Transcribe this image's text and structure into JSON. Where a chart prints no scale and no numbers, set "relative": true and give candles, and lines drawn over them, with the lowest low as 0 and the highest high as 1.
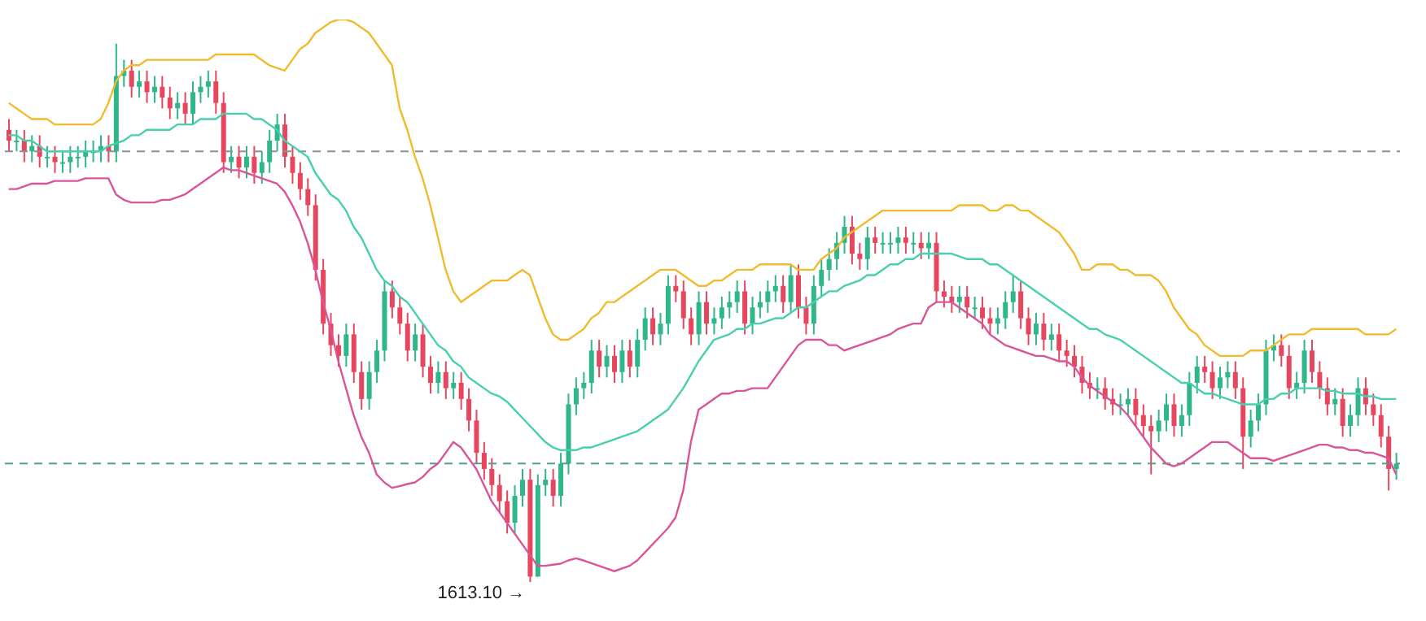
{
  "chart_data": {
    "type": "candlestick",
    "relative": true,
    "categories": [
      null,
      null,
      null,
      null,
      null,
      null,
      null,
      null,
      null,
      null,
      null,
      null,
      null,
      null,
      null,
      null,
      null,
      null,
      null,
      null,
      null,
      null,
      null,
      null,
      null,
      null,
      null,
      null,
      null,
      null,
      null,
      null,
      null,
      null,
      null,
      null,
      null,
      null,
      null,
      null,
      null,
      null,
      null,
      null,
      null,
      null,
      null,
      null,
      null,
      null,
      null,
      null,
      null,
      null,
      null,
      null,
      null,
      null,
      null,
      null,
      null,
      null,
      null,
      null,
      null,
      null,
      null,
      null,
      null,
      null,
      null,
      null,
      null,
      null,
      null,
      null,
      null,
      null,
      null,
      null,
      null,
      null,
      null,
      null,
      null,
      null,
      null,
      null,
      null,
      null,
      null,
      null,
      null,
      null,
      null,
      null,
      null,
      null,
      null,
      null,
      null,
      null,
      null,
      null,
      null,
      null,
      null,
      null,
      null,
      null,
      null,
      null,
      null,
      null,
      null,
      null,
      null,
      null,
      null,
      null,
      null,
      null,
      null,
      null,
      null,
      null,
      null,
      null,
      null,
      null,
      null,
      null,
      null,
      null,
      null,
      null,
      null,
      null,
      null,
      null,
      null,
      null,
      null,
      null,
      null,
      null,
      null,
      null,
      null,
      null,
      null,
      null,
      null,
      null,
      null,
      null,
      null,
      null,
      null,
      null,
      null,
      null,
      null,
      null,
      null,
      null,
      null,
      null,
      null,
      null,
      null,
      null,
      null,
      null,
      null,
      null,
      null,
      null,
      null,
      null,
      null,
      null
    ],
    "ohlc": [
      [
        0.84,
        0.86,
        0.8,
        0.82
      ],
      [
        0.82,
        0.84,
        0.8,
        0.82
      ],
      [
        0.82,
        0.84,
        0.78,
        0.8
      ],
      [
        0.8,
        0.83,
        0.78,
        0.81
      ],
      [
        0.81,
        0.83,
        0.77,
        0.79
      ],
      [
        0.79,
        0.81,
        0.77,
        0.79
      ],
      [
        0.79,
        0.81,
        0.76,
        0.78
      ],
      [
        0.78,
        0.8,
        0.76,
        0.78
      ],
      [
        0.78,
        0.81,
        0.76,
        0.79
      ],
      [
        0.79,
        0.81,
        0.77,
        0.79
      ],
      [
        0.79,
        0.82,
        0.77,
        0.8
      ],
      [
        0.8,
        0.82,
        0.78,
        0.8
      ],
      [
        0.8,
        0.83,
        0.78,
        0.81
      ],
      [
        0.81,
        0.83,
        0.78,
        0.8
      ],
      [
        0.8,
        1.0,
        0.78,
        0.94
      ],
      [
        0.94,
        0.97,
        0.92,
        0.95
      ],
      [
        0.95,
        0.97,
        0.9,
        0.92
      ],
      [
        0.92,
        0.95,
        0.9,
        0.93
      ],
      [
        0.93,
        0.95,
        0.89,
        0.91
      ],
      [
        0.91,
        0.94,
        0.89,
        0.92
      ],
      [
        0.92,
        0.94,
        0.88,
        0.9
      ],
      [
        0.9,
        0.92,
        0.86,
        0.88
      ],
      [
        0.88,
        0.91,
        0.86,
        0.89
      ],
      [
        0.89,
        0.91,
        0.85,
        0.87
      ],
      [
        0.87,
        0.93,
        0.85,
        0.91
      ],
      [
        0.91,
        0.94,
        0.89,
        0.92
      ],
      [
        0.92,
        0.95,
        0.9,
        0.93
      ],
      [
        0.93,
        0.95,
        0.87,
        0.89
      ],
      [
        0.89,
        0.91,
        0.76,
        0.78
      ],
      [
        0.78,
        0.81,
        0.76,
        0.79
      ],
      [
        0.79,
        0.81,
        0.75,
        0.77
      ],
      [
        0.77,
        0.81,
        0.75,
        0.79
      ],
      [
        0.79,
        0.81,
        0.74,
        0.76
      ],
      [
        0.76,
        0.8,
        0.74,
        0.78
      ],
      [
        0.78,
        0.84,
        0.76,
        0.82
      ],
      [
        0.82,
        0.87,
        0.8,
        0.85
      ],
      [
        0.85,
        0.87,
        0.77,
        0.79
      ],
      [
        0.79,
        0.81,
        0.74,
        0.76
      ],
      [
        0.76,
        0.78,
        0.71,
        0.73
      ],
      [
        0.73,
        0.75,
        0.68,
        0.7
      ],
      [
        0.7,
        0.72,
        0.56,
        0.58
      ],
      [
        0.58,
        0.6,
        0.46,
        0.48
      ],
      [
        0.48,
        0.5,
        0.42,
        0.44
      ],
      [
        0.44,
        0.46,
        0.4,
        0.42
      ],
      [
        0.42,
        0.48,
        0.4,
        0.46
      ],
      [
        0.46,
        0.48,
        0.37,
        0.39
      ],
      [
        0.39,
        0.41,
        0.32,
        0.34
      ],
      [
        0.34,
        0.41,
        0.32,
        0.39
      ],
      [
        0.39,
        0.45,
        0.37,
        0.43
      ],
      [
        0.43,
        0.56,
        0.41,
        0.54
      ],
      [
        0.54,
        0.56,
        0.49,
        0.51
      ],
      [
        0.51,
        0.53,
        0.46,
        0.48
      ],
      [
        0.48,
        0.5,
        0.41,
        0.43
      ],
      [
        0.43,
        0.48,
        0.41,
        0.46
      ],
      [
        0.46,
        0.48,
        0.38,
        0.4
      ],
      [
        0.4,
        0.42,
        0.35,
        0.37
      ],
      [
        0.37,
        0.41,
        0.35,
        0.39
      ],
      [
        0.39,
        0.41,
        0.34,
        0.36
      ],
      [
        0.36,
        0.39,
        0.34,
        0.37
      ],
      [
        0.37,
        0.39,
        0.32,
        0.34
      ],
      [
        0.34,
        0.36,
        0.28,
        0.3
      ],
      [
        0.3,
        0.32,
        0.22,
        0.24
      ],
      [
        0.24,
        0.26,
        0.19,
        0.21
      ],
      [
        0.21,
        0.23,
        0.16,
        0.18
      ],
      [
        0.18,
        0.2,
        0.13,
        0.15
      ],
      [
        0.15,
        0.17,
        0.09,
        0.11
      ],
      [
        0.11,
        0.18,
        0.09,
        0.16
      ],
      [
        0.16,
        0.21,
        0.14,
        0.19
      ],
      [
        0.19,
        0.21,
        0,
        0.01
      ],
      [
        0.01,
        0.2,
        0.01,
        0.18
      ],
      [
        0.18,
        0.21,
        0.16,
        0.19
      ],
      [
        0.19,
        0.21,
        0.14,
        0.16
      ],
      [
        0.16,
        0.24,
        0.14,
        0.22
      ],
      [
        0.22,
        0.35,
        0.2,
        0.33
      ],
      [
        0.33,
        0.38,
        0.31,
        0.36
      ],
      [
        0.36,
        0.39,
        0.34,
        0.37
      ],
      [
        0.37,
        0.45,
        0.35,
        0.43
      ],
      [
        0.43,
        0.45,
        0.38,
        0.4
      ],
      [
        0.4,
        0.44,
        0.38,
        0.42
      ],
      [
        0.42,
        0.44,
        0.37,
        0.39
      ],
      [
        0.39,
        0.45,
        0.37,
        0.43
      ],
      [
        0.43,
        0.45,
        0.38,
        0.4
      ],
      [
        0.4,
        0.47,
        0.38,
        0.45
      ],
      [
        0.45,
        0.51,
        0.43,
        0.49
      ],
      [
        0.49,
        0.51,
        0.44,
        0.46
      ],
      [
        0.46,
        0.5,
        0.44,
        0.48
      ],
      [
        0.48,
        0.57,
        0.46,
        0.55
      ],
      [
        0.55,
        0.57,
        0.52,
        0.54
      ],
      [
        0.54,
        0.56,
        0.47,
        0.49
      ],
      [
        0.49,
        0.51,
        0.44,
        0.46
      ],
      [
        0.46,
        0.54,
        0.44,
        0.52
      ],
      [
        0.52,
        0.54,
        0.46,
        0.48
      ],
      [
        0.48,
        0.51,
        0.46,
        0.49
      ],
      [
        0.49,
        0.53,
        0.47,
        0.51
      ],
      [
        0.51,
        0.54,
        0.49,
        0.52
      ],
      [
        0.52,
        0.56,
        0.5,
        0.54
      ],
      [
        0.54,
        0.56,
        0.46,
        0.48
      ],
      [
        0.48,
        0.53,
        0.46,
        0.51
      ],
      [
        0.51,
        0.54,
        0.49,
        0.52
      ],
      [
        0.52,
        0.56,
        0.5,
        0.54
      ],
      [
        0.54,
        0.57,
        0.52,
        0.55
      ],
      [
        0.55,
        0.57,
        0.5,
        0.52
      ],
      [
        0.52,
        0.59,
        0.5,
        0.57
      ],
      [
        0.57,
        0.59,
        0.49,
        0.51
      ],
      [
        0.51,
        0.53,
        0.46,
        0.48
      ],
      [
        0.48,
        0.57,
        0.46,
        0.55
      ],
      [
        0.55,
        0.6,
        0.53,
        0.58
      ],
      [
        0.58,
        0.62,
        0.56,
        0.6
      ],
      [
        0.6,
        0.65,
        0.58,
        0.63
      ],
      [
        0.63,
        0.68,
        0.61,
        0.66
      ],
      [
        0.66,
        0.68,
        0.59,
        0.61
      ],
      [
        0.61,
        0.63,
        0.58,
        0.6
      ],
      [
        0.6,
        0.66,
        0.58,
        0.64
      ],
      [
        0.64,
        0.66,
        0.61,
        0.63
      ],
      [
        0.63,
        0.65,
        0.61,
        0.63
      ],
      [
        0.63,
        0.65,
        0.61,
        0.63
      ],
      [
        0.63,
        0.66,
        0.61,
        0.64
      ],
      [
        0.64,
        0.66,
        0.61,
        0.63
      ],
      [
        0.63,
        0.65,
        0.61,
        0.63
      ],
      [
        0.63,
        0.65,
        0.6,
        0.62
      ],
      [
        0.62,
        0.65,
        0.6,
        0.63
      ],
      [
        0.63,
        0.65,
        0.52,
        0.54
      ],
      [
        0.54,
        0.56,
        0.51,
        0.53
      ],
      [
        0.53,
        0.55,
        0.5,
        0.52
      ],
      [
        0.52,
        0.55,
        0.5,
        0.53
      ],
      [
        0.53,
        0.55,
        0.49,
        0.51
      ],
      [
        0.51,
        0.53,
        0.49,
        0.51
      ],
      [
        0.51,
        0.53,
        0.47,
        0.49
      ],
      [
        0.49,
        0.51,
        0.46,
        0.48
      ],
      [
        0.48,
        0.51,
        0.46,
        0.49
      ],
      [
        0.49,
        0.54,
        0.47,
        0.52
      ],
      [
        0.52,
        0.57,
        0.5,
        0.54
      ],
      [
        0.54,
        0.56,
        0.47,
        0.49
      ],
      [
        0.49,
        0.51,
        0.44,
        0.46
      ],
      [
        0.46,
        0.5,
        0.44,
        0.48
      ],
      [
        0.48,
        0.5,
        0.43,
        0.45
      ],
      [
        0.45,
        0.48,
        0.43,
        0.46
      ],
      [
        0.46,
        0.48,
        0.41,
        0.43
      ],
      [
        0.43,
        0.45,
        0.4,
        0.42
      ],
      [
        0.42,
        0.44,
        0.38,
        0.4
      ],
      [
        0.4,
        0.42,
        0.35,
        0.37
      ],
      [
        0.37,
        0.39,
        0.34,
        0.36
      ],
      [
        0.36,
        0.38,
        0.34,
        0.36
      ],
      [
        0.36,
        0.38,
        0.32,
        0.34
      ],
      [
        0.34,
        0.36,
        0.31,
        0.33
      ],
      [
        0.33,
        0.35,
        0.31,
        0.33
      ],
      [
        0.33,
        0.36,
        0.31,
        0.34
      ],
      [
        0.34,
        0.36,
        0.29,
        0.31
      ],
      [
        0.31,
        0.33,
        0.27,
        0.29
      ],
      [
        0.29,
        0.31,
        0.2,
        0.28
      ],
      [
        0.28,
        0.32,
        0.26,
        0.3
      ],
      [
        0.3,
        0.35,
        0.28,
        0.33
      ],
      [
        0.33,
        0.35,
        0.27,
        0.29
      ],
      [
        0.29,
        0.33,
        0.27,
        0.31
      ],
      [
        0.31,
        0.39,
        0.29,
        0.37
      ],
      [
        0.37,
        0.42,
        0.35,
        0.4
      ],
      [
        0.4,
        0.42,
        0.37,
        0.39
      ],
      [
        0.39,
        0.41,
        0.34,
        0.36
      ],
      [
        0.36,
        0.4,
        0.34,
        0.38
      ],
      [
        0.38,
        0.41,
        0.36,
        0.39
      ],
      [
        0.39,
        0.41,
        0.34,
        0.36
      ],
      [
        0.36,
        0.38,
        0.21,
        0.27
      ],
      [
        0.27,
        0.32,
        0.25,
        0.3
      ],
      [
        0.3,
        0.35,
        0.28,
        0.33
      ],
      [
        0.33,
        0.45,
        0.31,
        0.43
      ],
      [
        0.43,
        0.46,
        0.41,
        0.44
      ],
      [
        0.44,
        0.46,
        0.4,
        0.42
      ],
      [
        0.42,
        0.44,
        0.34,
        0.36
      ],
      [
        0.36,
        0.39,
        0.34,
        0.37
      ],
      [
        0.37,
        0.45,
        0.35,
        0.43
      ],
      [
        0.43,
        0.45,
        0.37,
        0.39
      ],
      [
        0.39,
        0.41,
        0.34,
        0.36
      ],
      [
        0.36,
        0.38,
        0.31,
        0.33
      ],
      [
        0.33,
        0.36,
        0.31,
        0.34
      ],
      [
        0.34,
        0.36,
        0.27,
        0.29
      ],
      [
        0.29,
        0.33,
        0.27,
        0.31
      ],
      [
        0.31,
        0.38,
        0.29,
        0.36
      ],
      [
        0.36,
        0.38,
        0.31,
        0.33
      ],
      [
        0.33,
        0.35,
        0.29,
        0.31
      ],
      [
        0.31,
        0.33,
        0.25,
        0.27
      ],
      [
        0.27,
        0.29,
        0.17,
        0.21
      ],
      [
        0.21,
        0.24,
        0.19,
        0.22
      ]
    ],
    "colors": [
      "#e6475e",
      "#2fb78a",
      "#e6475e",
      "#2fb78a",
      "#e6475e",
      "#2fb78a",
      "#e6475e",
      "#2fb78a",
      "#2fb78a",
      "#2fb78a",
      "#2fb78a",
      "#2fb78a",
      "#2fb78a",
      "#e6475e",
      "#2fb78a",
      "#2fb78a",
      "#e6475e",
      "#2fb78a",
      "#e6475e",
      "#2fb78a",
      "#e6475e",
      "#e6475e",
      "#2fb78a",
      "#e6475e",
      "#2fb78a",
      "#2fb78a",
      "#2fb78a",
      "#e6475e",
      "#e6475e",
      "#2fb78a",
      "#e6475e",
      "#2fb78a",
      "#e6475e",
      "#2fb78a",
      "#2fb78a",
      "#2fb78a",
      "#e6475e",
      "#e6475e",
      "#e6475e",
      "#e6475e",
      "#e6475e",
      "#e6475e",
      "#e6475e",
      "#e6475e",
      "#2fb78a",
      "#e6475e",
      "#e6475e",
      "#2fb78a",
      "#2fb78a",
      "#2fb78a",
      "#e6475e",
      "#e6475e",
      "#e6475e",
      "#2fb78a",
      "#e6475e",
      "#e6475e",
      "#2fb78a",
      "#e6475e",
      "#2fb78a",
      "#e6475e",
      "#e6475e",
      "#e6475e",
      "#e6475e",
      "#e6475e",
      "#e6475e",
      "#e6475e",
      "#2fb78a",
      "#2fb78a",
      "#e6475e",
      "#2fb78a",
      "#2fb78a",
      "#e6475e",
      "#2fb78a",
      "#2fb78a",
      "#2fb78a",
      "#2fb78a",
      "#2fb78a",
      "#e6475e",
      "#2fb78a",
      "#e6475e",
      "#2fb78a",
      "#e6475e",
      "#2fb78a",
      "#2fb78a",
      "#e6475e",
      "#2fb78a",
      "#2fb78a",
      "#e6475e",
      "#e6475e",
      "#e6475e",
      "#2fb78a",
      "#e6475e",
      "#2fb78a",
      "#2fb78a",
      "#2fb78a",
      "#2fb78a",
      "#e6475e",
      "#2fb78a",
      "#2fb78a",
      "#2fb78a",
      "#2fb78a",
      "#e6475e",
      "#2fb78a",
      "#e6475e",
      "#e6475e",
      "#2fb78a",
      "#2fb78a",
      "#2fb78a",
      "#2fb78a",
      "#2fb78a",
      "#e6475e",
      "#e6475e",
      "#2fb78a",
      "#e6475e",
      "#2fb78a",
      "#2fb78a",
      "#2fb78a",
      "#e6475e",
      "#2fb78a",
      "#e6475e",
      "#2fb78a",
      "#e6475e",
      "#e6475e",
      "#e6475e",
      "#2fb78a",
      "#e6475e",
      "#2fb78a",
      "#e6475e",
      "#e6475e",
      "#2fb78a",
      "#2fb78a",
      "#2fb78a",
      "#e6475e",
      "#e6475e",
      "#2fb78a",
      "#e6475e",
      "#2fb78a",
      "#e6475e",
      "#e6475e",
      "#e6475e",
      "#e6475e",
      "#e6475e",
      "#2fb78a",
      "#e6475e",
      "#e6475e",
      "#2fb78a",
      "#2fb78a",
      "#e6475e",
      "#e6475e",
      "#e6475e",
      "#2fb78a",
      "#2fb78a",
      "#e6475e",
      "#2fb78a",
      "#2fb78a",
      "#2fb78a",
      "#e6475e",
      "#e6475e",
      "#2fb78a",
      "#2fb78a",
      "#e6475e",
      "#e6475e",
      "#2fb78a",
      "#2fb78a",
      "#2fb78a",
      "#2fb78a",
      "#e6475e",
      "#e6475e",
      "#2fb78a",
      "#2fb78a",
      "#e6475e",
      "#e6475e",
      "#e6475e",
      "#2fb78a",
      "#e6475e",
      "#2fb78a",
      "#2fb78a",
      "#e6475e",
      "#e6475e",
      "#e6475e",
      "#e6475e",
      "#2fb78a"
    ],
    "series": [
      {
        "type": "line",
        "color": "#f0bb2e",
        "values": [
          0.89,
          0.88,
          0.87,
          0.86,
          0.86,
          0.86,
          0.85,
          0.85,
          0.85,
          0.85,
          0.85,
          0.85,
          0.86,
          0.89,
          0.93,
          0.95,
          0.96,
          0.96,
          0.97,
          0.97,
          0.97,
          0.97,
          0.97,
          0.97,
          0.97,
          0.97,
          0.97,
          0.98,
          0.98,
          0.98,
          0.98,
          0.98,
          0.98,
          0.97,
          0.96,
          0.955,
          0.95,
          0.97,
          0.99,
          1.0,
          1.02,
          1.03,
          1.04,
          1.045,
          1.045,
          1.04,
          1.03,
          1.02,
          1.0,
          0.98,
          0.96,
          0.88,
          0.84,
          0.79,
          0.75,
          0.7,
          0.64,
          0.58,
          0.54,
          0.52,
          0.53,
          0.54,
          0.55,
          0.56,
          0.56,
          0.56,
          0.57,
          0.58,
          0.57,
          0.53,
          0.49,
          0.46,
          0.45,
          0.45,
          0.46,
          0.47,
          0.49,
          0.5,
          0.52,
          0.52,
          0.53,
          0.54,
          0.55,
          0.56,
          0.57,
          0.58,
          0.58,
          0.58,
          0.57,
          0.56,
          0.55,
          0.55,
          0.56,
          0.56,
          0.57,
          0.58,
          0.58,
          0.58,
          0.59,
          0.59,
          0.59,
          0.59,
          0.59,
          0.58,
          0.58,
          0.58,
          0.6,
          0.61,
          0.62,
          0.64,
          0.65,
          0.66,
          0.67,
          0.68,
          0.69,
          0.69,
          0.69,
          0.69,
          0.69,
          0.69,
          0.69,
          0.69,
          0.69,
          0.69,
          0.7,
          0.7,
          0.7,
          0.7,
          0.69,
          0.69,
          0.7,
          0.7,
          0.69,
          0.69,
          0.68,
          0.67,
          0.66,
          0.65,
          0.63,
          0.61,
          0.58,
          0.58,
          0.59,
          0.59,
          0.59,
          0.58,
          0.58,
          0.57,
          0.57,
          0.57,
          0.56,
          0.54,
          0.51,
          0.49,
          0.47,
          0.46,
          0.44,
          0.43,
          0.42,
          0.42,
          0.42,
          0.42,
          0.43,
          0.43,
          0.43,
          0.44,
          0.45,
          0.46,
          0.46,
          0.46,
          0.47,
          0.47,
          0.47,
          0.47,
          0.47,
          0.47,
          0.47,
          0.46,
          0.46,
          0.46,
          0.46,
          0.47
        ]
      },
      {
        "type": "line",
        "color": "#48cfae",
        "values": [
          0.83,
          0.83,
          0.82,
          0.82,
          0.81,
          0.8,
          0.8,
          0.8,
          0.8,
          0.8,
          0.8,
          0.8,
          0.8,
          0.81,
          0.815,
          0.82,
          0.83,
          0.83,
          0.84,
          0.84,
          0.84,
          0.84,
          0.85,
          0.85,
          0.85,
          0.86,
          0.86,
          0.86,
          0.87,
          0.87,
          0.87,
          0.87,
          0.86,
          0.86,
          0.85,
          0.84,
          0.82,
          0.81,
          0.8,
          0.79,
          0.76,
          0.74,
          0.72,
          0.71,
          0.69,
          0.66,
          0.64,
          0.61,
          0.58,
          0.56,
          0.55,
          0.53,
          0.52,
          0.5,
          0.48,
          0.46,
          0.44,
          0.43,
          0.41,
          0.4,
          0.38,
          0.37,
          0.36,
          0.35,
          0.345,
          0.335,
          0.32,
          0.305,
          0.29,
          0.275,
          0.26,
          0.25,
          0.245,
          0.245,
          0.245,
          0.25,
          0.25,
          0.255,
          0.26,
          0.265,
          0.27,
          0.275,
          0.28,
          0.29,
          0.3,
          0.31,
          0.32,
          0.34,
          0.36,
          0.385,
          0.41,
          0.43,
          0.45,
          0.455,
          0.46,
          0.47,
          0.47,
          0.48,
          0.48,
          0.485,
          0.49,
          0.49,
          0.5,
          0.51,
          0.51,
          0.52,
          0.53,
          0.54,
          0.54,
          0.55,
          0.555,
          0.56,
          0.57,
          0.57,
          0.58,
          0.59,
          0.59,
          0.6,
          0.6,
          0.61,
          0.61,
          0.61,
          0.61,
          0.61,
          0.605,
          0.6,
          0.6,
          0.6,
          0.59,
          0.59,
          0.58,
          0.57,
          0.56,
          0.55,
          0.54,
          0.53,
          0.52,
          0.51,
          0.5,
          0.49,
          0.48,
          0.47,
          0.47,
          0.46,
          0.455,
          0.45,
          0.44,
          0.43,
          0.42,
          0.41,
          0.4,
          0.39,
          0.38,
          0.37,
          0.37,
          0.36,
          0.35,
          0.35,
          0.345,
          0.34,
          0.335,
          0.33,
          0.33,
          0.33,
          0.34,
          0.34,
          0.35,
          0.35,
          0.36,
          0.36,
          0.36,
          0.36,
          0.355,
          0.355,
          0.35,
          0.35,
          0.35,
          0.345,
          0.345,
          0.34,
          0.34,
          0.34
        ]
      },
      {
        "type": "line",
        "color": "#d9559a",
        "values": [
          0.73,
          0.73,
          0.735,
          0.74,
          0.74,
          0.74,
          0.745,
          0.745,
          0.745,
          0.745,
          0.75,
          0.75,
          0.75,
          0.75,
          0.72,
          0.71,
          0.705,
          0.705,
          0.705,
          0.705,
          0.71,
          0.71,
          0.715,
          0.72,
          0.73,
          0.74,
          0.75,
          0.76,
          0.77,
          0.765,
          0.765,
          0.76,
          0.755,
          0.75,
          0.745,
          0.74,
          0.725,
          0.7,
          0.67,
          0.63,
          0.58,
          0.52,
          0.47,
          0.41,
          0.36,
          0.31,
          0.27,
          0.24,
          0.2,
          0.185,
          0.175,
          0.178,
          0.182,
          0.185,
          0.195,
          0.21,
          0.22,
          0.24,
          0.26,
          0.25,
          0.23,
          0.21,
          0.18,
          0.15,
          0.13,
          0.11,
          0.09,
          0.07,
          0.05,
          0.03,
          0.03,
          0.032,
          0.034,
          0.04,
          0.044,
          0.04,
          0.035,
          0.03,
          0.025,
          0.02,
          0.025,
          0.03,
          0.04,
          0.055,
          0.07,
          0.085,
          0.1,
          0.12,
          0.17,
          0.26,
          0.32,
          0.33,
          0.34,
          0.35,
          0.35,
          0.355,
          0.355,
          0.36,
          0.36,
          0.36,
          0.38,
          0.4,
          0.42,
          0.44,
          0.45,
          0.45,
          0.45,
          0.44,
          0.44,
          0.43,
          0.435,
          0.44,
          0.445,
          0.45,
          0.455,
          0.46,
          0.47,
          0.475,
          0.48,
          0.48,
          0.51,
          0.52,
          0.52,
          0.52,
          0.51,
          0.5,
          0.49,
          0.48,
          0.46,
          0.45,
          0.44,
          0.435,
          0.43,
          0.425,
          0.42,
          0.42,
          0.415,
          0.41,
          0.41,
          0.4,
          0.38,
          0.365,
          0.355,
          0.345,
          0.335,
          0.325,
          0.31,
          0.29,
          0.27,
          0.25,
          0.235,
          0.22,
          0.215,
          0.22,
          0.23,
          0.24,
          0.25,
          0.26,
          0.26,
          0.26,
          0.25,
          0.24,
          0.23,
          0.23,
          0.23,
          0.225,
          0.23,
          0.235,
          0.24,
          0.245,
          0.25,
          0.255,
          0.255,
          0.25,
          0.25,
          0.245,
          0.245,
          0.24,
          0.24,
          0.235,
          0.23,
          0.2
        ]
      }
    ],
    "ref_lines": [
      {
        "axis": "y",
        "value": 0.8,
        "color": "#8a8f99",
        "line_style": "dashed"
      },
      {
        "axis": "y",
        "value": 0.22,
        "color": "#4f9e90",
        "line_style": "dashed"
      }
    ],
    "annotations": [
      "1613.10 →"
    ]
  }
}
